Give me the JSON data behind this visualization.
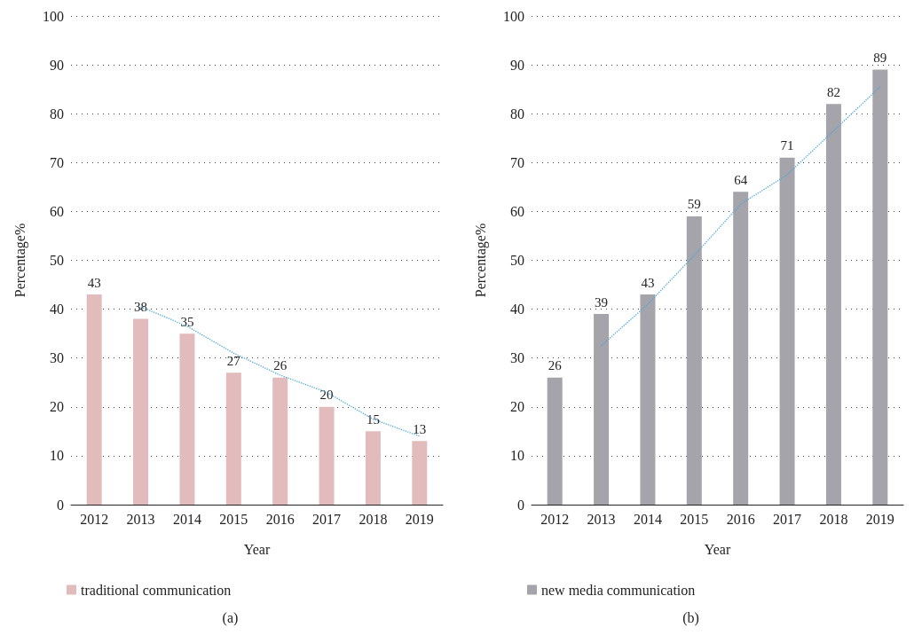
{
  "chart_data": [
    {
      "type": "bar",
      "xlabel": "Year",
      "ylabel": "Percentage%",
      "categories": [
        "2012",
        "2013",
        "2014",
        "2015",
        "2016",
        "2017",
        "2018",
        "2019"
      ],
      "series": [
        {
          "name": "traditional communication",
          "color": "#e2bcbc",
          "values": [
            43,
            38,
            35,
            27,
            26,
            20,
            15,
            13
          ],
          "value_labels": [
            "43",
            "38",
            "35",
            "27",
            "26",
            "20",
            "15",
            "13"
          ]
        },
        {
          "type": "line",
          "color": "#4aa8d8",
          "line_style": "dotted",
          "marker": "none",
          "values": [
            null,
            40.5,
            36.5,
            31,
            26.5,
            23,
            17.5,
            14
          ]
        }
      ],
      "ylim": [
        0,
        100
      ],
      "yticks": [
        0,
        10,
        20,
        30,
        40,
        50,
        60,
        70,
        80,
        90,
        100
      ],
      "grid": "y",
      "legend": "bottom",
      "annotations": [
        "(a)"
      ]
    },
    {
      "type": "bar",
      "xlabel": "Year",
      "ylabel": "Percentage%",
      "categories": [
        "2012",
        "2013",
        "2014",
        "2015",
        "2016",
        "2017",
        "2018",
        "2019"
      ],
      "series": [
        {
          "name": "new media communication",
          "color": "#a5a4aa",
          "values": [
            26,
            39,
            43,
            59,
            64,
            71,
            82,
            89
          ],
          "value_labels": [
            "26",
            "39",
            "43",
            "59",
            "64",
            "71",
            "82",
            "89"
          ]
        },
        {
          "type": "line",
          "color": "#4aa8d8",
          "line_style": "dotted",
          "marker": "none",
          "values": [
            null,
            32.5,
            41,
            51,
            61.5,
            67.5,
            76.5,
            85.5
          ]
        }
      ],
      "ylim": [
        0,
        100
      ],
      "yticks": [
        0,
        10,
        20,
        30,
        40,
        50,
        60,
        70,
        80,
        90,
        100
      ],
      "grid": "y",
      "legend": "bottom",
      "annotations": [
        "(b)"
      ]
    }
  ]
}
